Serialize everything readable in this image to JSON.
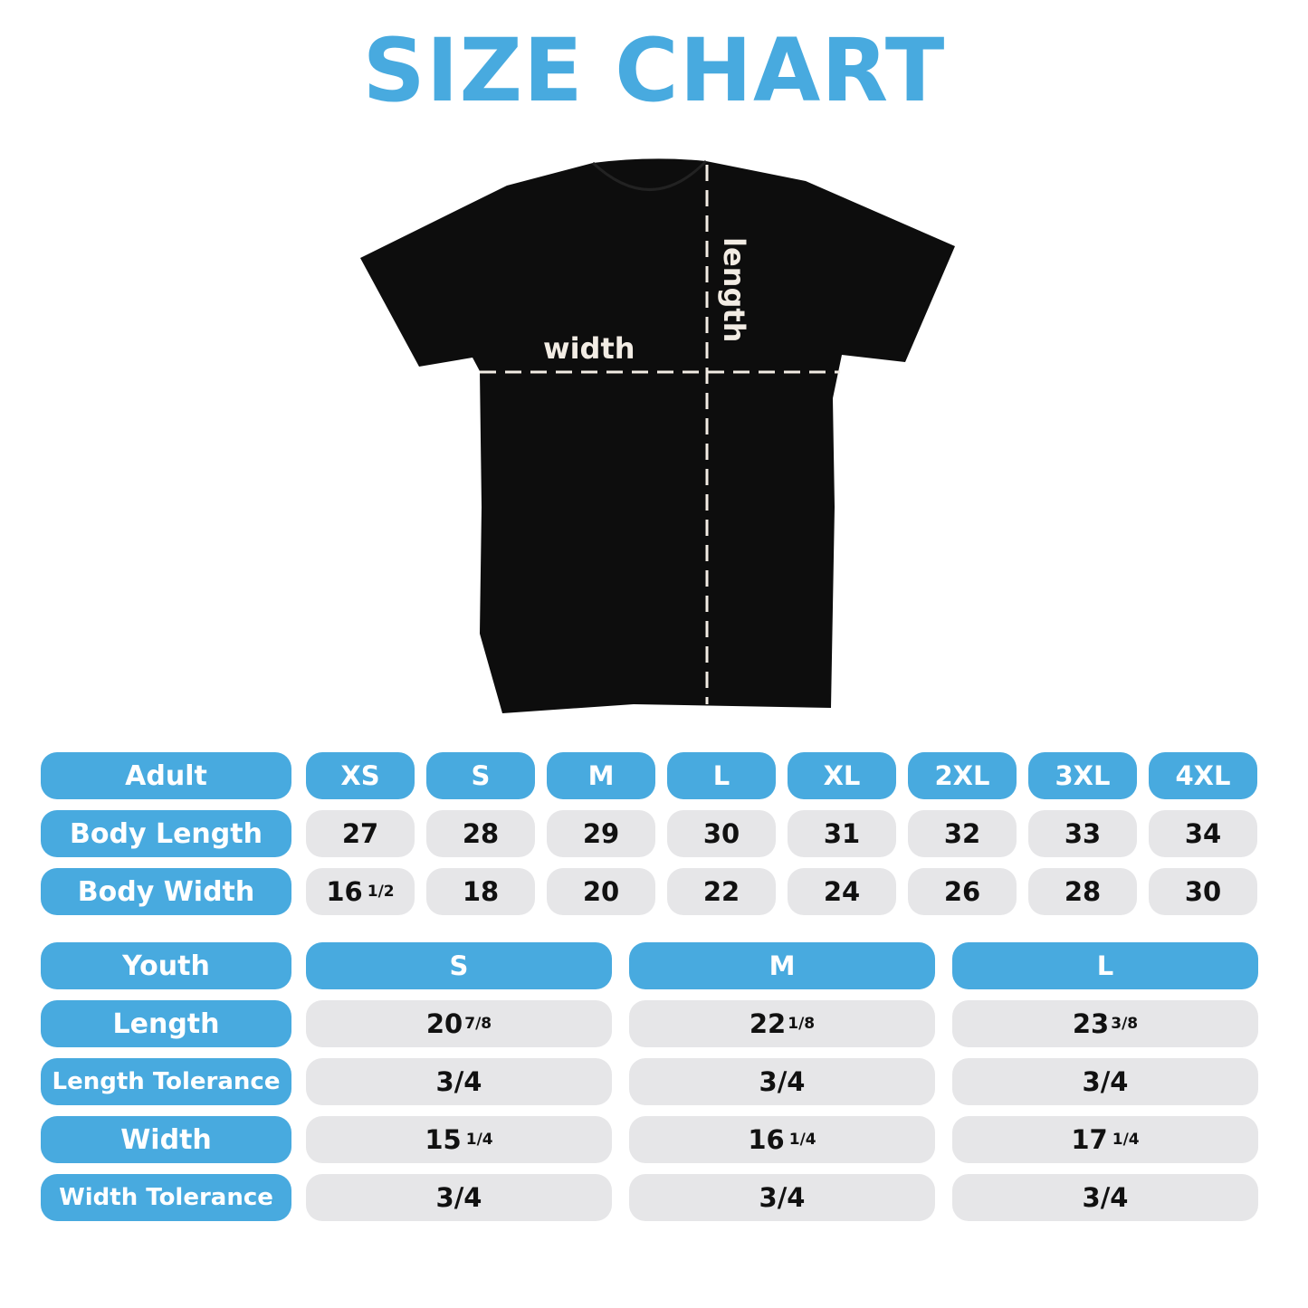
{
  "title": "SIZE CHART",
  "shirt": {
    "width_label": "width",
    "length_label": "length",
    "shirt_color": "#0d0d0d"
  },
  "colors": {
    "accent": "#48aadf",
    "cell": "#e6e6e8"
  },
  "adult": {
    "header": "Adult",
    "sizes": [
      "XS",
      "S",
      "M",
      "L",
      "XL",
      "2XL",
      "3XL",
      "4XL"
    ],
    "rows": [
      {
        "label": "Body Length",
        "values": [
          {
            "w": "27"
          },
          {
            "w": "28"
          },
          {
            "w": "29"
          },
          {
            "w": "30"
          },
          {
            "w": "31"
          },
          {
            "w": "32"
          },
          {
            "w": "33"
          },
          {
            "w": "34"
          }
        ]
      },
      {
        "label": "Body Width",
        "values": [
          {
            "w": "16",
            "f": "1/2"
          },
          {
            "w": "18"
          },
          {
            "w": "20"
          },
          {
            "w": "22"
          },
          {
            "w": "24"
          },
          {
            "w": "26"
          },
          {
            "w": "28"
          },
          {
            "w": "30"
          }
        ]
      }
    ]
  },
  "youth": {
    "header": "Youth",
    "sizes": [
      "S",
      "M",
      "L"
    ],
    "rows": [
      {
        "label": "Length",
        "values": [
          {
            "w": "20",
            "f": "7/8"
          },
          {
            "w": "22",
            "f": "1/8"
          },
          {
            "w": "23",
            "f": "3/8"
          }
        ]
      },
      {
        "label": "Length Tolerance",
        "values": [
          {
            "w": "3/4"
          },
          {
            "w": "3/4"
          },
          {
            "w": "3/4"
          }
        ]
      },
      {
        "label": "Width",
        "values": [
          {
            "w": "15",
            "f": "1/4"
          },
          {
            "w": "16",
            "f": "1/4"
          },
          {
            "w": "17",
            "f": "1/4"
          }
        ]
      },
      {
        "label": "Width Tolerance",
        "values": [
          {
            "w": "3/4"
          },
          {
            "w": "3/4"
          },
          {
            "w": "3/4"
          }
        ]
      }
    ]
  }
}
